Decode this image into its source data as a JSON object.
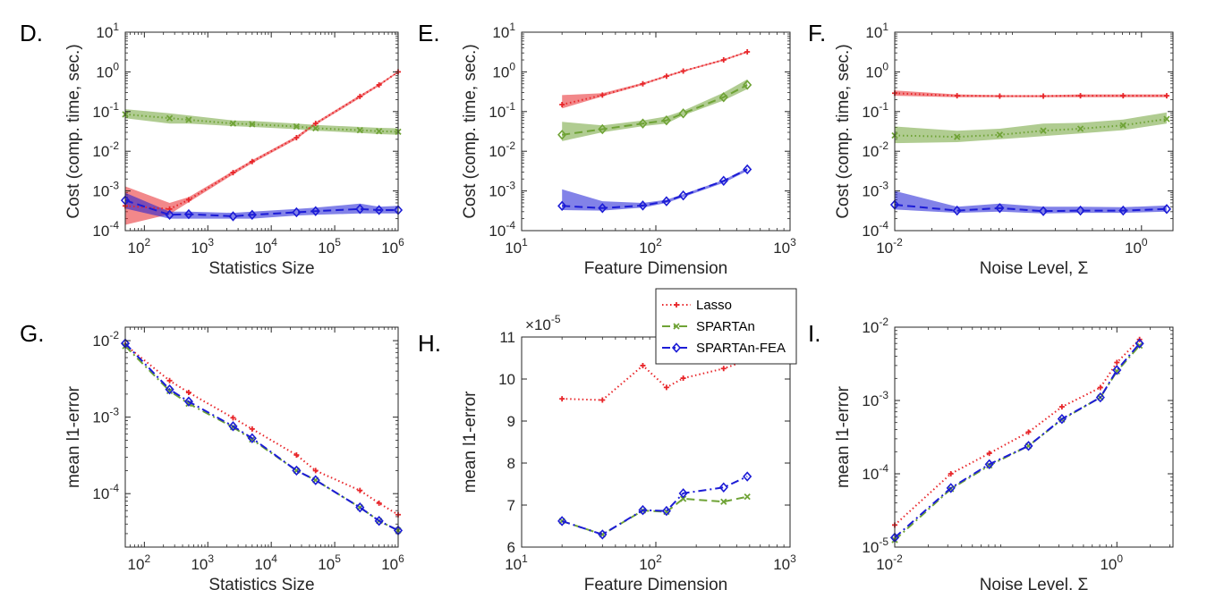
{
  "figure": {
    "legend": {
      "entries": [
        {
          "name": "Lasso",
          "color": "#e8262a",
          "dash": "dotted",
          "marker": "plus"
        },
        {
          "name": "SPARTAn",
          "color": "#6fa336",
          "dash": "dashdot",
          "marker": "x"
        },
        {
          "name": "SPARTAn-FEA",
          "color": "#1c1cd6",
          "dash": "dashdot",
          "marker": "diamond"
        }
      ]
    }
  },
  "chart_data": [
    {
      "id": "D",
      "letter": "D.",
      "type": "line",
      "xscale": "log",
      "yscale": "log",
      "xlim": [
        50,
        1000000
      ],
      "ylim": [
        0.0001,
        10
      ],
      "xticks": [
        {
          "e": "2"
        },
        {
          "e": "3"
        },
        {
          "e": "4"
        },
        {
          "e": "5"
        },
        {
          "e": "6"
        }
      ],
      "yticks": [
        {
          "e": "-4"
        },
        {
          "e": "-3"
        },
        {
          "e": "-2"
        },
        {
          "e": "-1"
        },
        {
          "e": "0"
        },
        {
          "e": "1"
        }
      ],
      "xlabel": "Statistics Size",
      "ylabel": "Cost (comp. time, sec.)",
      "series": [
        {
          "name": "Lasso",
          "color": "#e8262a",
          "dash": "dotted",
          "marker": "plus",
          "x": [
            50,
            250,
            500,
            2500,
            5000,
            25000,
            50000,
            250000,
            500000,
            1000000
          ],
          "y": [
            0.00042,
            0.00035,
            0.0006,
            0.0029,
            0.0055,
            0.022,
            0.05,
            0.24,
            0.47,
            1.0
          ],
          "band_lo": [
            0.00014,
            0.00026,
            0.00052,
            0.0026,
            0.005,
            0.02,
            0.046,
            0.22,
            0.44,
            0.95
          ],
          "band_hi": [
            0.0013,
            0.0005,
            0.0007,
            0.0032,
            0.006,
            0.024,
            0.054,
            0.26,
            0.5,
            1.05
          ]
        },
        {
          "name": "SPARTAn",
          "color": "#6fa336",
          "dash": "dotted",
          "marker": "x",
          "x": [
            50,
            250,
            500,
            2500,
            5000,
            25000,
            50000,
            250000,
            500000,
            1000000
          ],
          "y": [
            0.085,
            0.068,
            0.062,
            0.05,
            0.048,
            0.042,
            0.038,
            0.034,
            0.032,
            0.031
          ],
          "band_lo": [
            0.068,
            0.05,
            0.05,
            0.043,
            0.041,
            0.036,
            0.033,
            0.029,
            0.027,
            0.026
          ],
          "band_hi": [
            0.115,
            0.09,
            0.08,
            0.06,
            0.058,
            0.05,
            0.046,
            0.041,
            0.039,
            0.038
          ]
        },
        {
          "name": "SPARTAn-FEA",
          "color": "#1c1cd6",
          "dash": "dashed",
          "marker": "diamond",
          "x": [
            50,
            250,
            500,
            2500,
            5000,
            25000,
            50000,
            250000,
            500000,
            1000000
          ],
          "y": [
            0.00058,
            0.00025,
            0.00026,
            0.00023,
            0.00025,
            0.00029,
            0.00031,
            0.00035,
            0.00033,
            0.00033
          ],
          "band_lo": [
            0.00036,
            0.0002,
            0.0002,
            0.0002,
            0.0002,
            0.00024,
            0.00025,
            0.00027,
            0.00027,
            0.00027
          ],
          "band_hi": [
            0.0009,
            0.0003,
            0.0003,
            0.00028,
            0.0003,
            0.00035,
            0.00038,
            0.00048,
            0.0004,
            0.00042
          ]
        }
      ]
    },
    {
      "id": "E",
      "letter": "E.",
      "type": "line",
      "xscale": "log",
      "yscale": "log",
      "xlim": [
        10,
        1000
      ],
      "ylim": [
        0.0001,
        10
      ],
      "xticks": [
        {
          "e": "1"
        },
        {
          "e": "2"
        },
        {
          "e": "3"
        }
      ],
      "yticks": [
        {
          "e": "-4"
        },
        {
          "e": "-3"
        },
        {
          "e": "-2"
        },
        {
          "e": "-1"
        },
        {
          "e": "0"
        },
        {
          "e": "1"
        }
      ],
      "xlabel": "Feature Dimension",
      "ylabel": "Cost (comp. time, sec.)",
      "series": [
        {
          "name": "Lasso",
          "color": "#e8262a",
          "dash": "dotted",
          "marker": "plus",
          "x": [
            20,
            40,
            80,
            120,
            160,
            320,
            480
          ],
          "y": [
            0.15,
            0.26,
            0.5,
            0.78,
            1.05,
            2.0,
            3.2
          ],
          "band_lo": [
            0.12,
            0.24,
            0.47,
            0.74,
            1.0,
            1.9,
            3.05
          ],
          "band_hi": [
            0.26,
            0.29,
            0.53,
            0.82,
            1.1,
            2.1,
            3.35
          ]
        },
        {
          "name": "SPARTAn",
          "color": "#6fa336",
          "dash": "dashed",
          "marker": "diamond",
          "x": [
            20,
            40,
            80,
            120,
            160,
            320,
            480
          ],
          "y": [
            0.026,
            0.036,
            0.05,
            0.06,
            0.09,
            0.23,
            0.47
          ],
          "band_lo": [
            0.018,
            0.03,
            0.043,
            0.05,
            0.08,
            0.19,
            0.37
          ],
          "band_hi": [
            0.055,
            0.045,
            0.06,
            0.075,
            0.105,
            0.3,
            0.65
          ]
        },
        {
          "name": "SPARTAn-FEA",
          "color": "#1c1cd6",
          "dash": "dashed",
          "marker": "diamond",
          "x": [
            20,
            40,
            80,
            120,
            160,
            320,
            480
          ],
          "y": [
            0.00042,
            0.00037,
            0.00043,
            0.00055,
            0.00077,
            0.0018,
            0.0035
          ],
          "band_lo": [
            0.00033,
            0.00032,
            0.00038,
            0.0005,
            0.0007,
            0.0016,
            0.0032
          ],
          "band_hi": [
            0.0011,
            0.00055,
            0.0005,
            0.0006,
            0.00083,
            0.0019,
            0.0038
          ]
        }
      ]
    },
    {
      "id": "F",
      "letter": "F.",
      "type": "line",
      "xscale": "log",
      "yscale": "log",
      "xlim": [
        0.01,
        1.8
      ],
      "ylim": [
        0.0001,
        10
      ],
      "xticks": [
        {
          "e": "-2"
        },
        {
          "e": "0"
        }
      ],
      "yticks": [
        {
          "e": "-4"
        },
        {
          "e": "-3"
        },
        {
          "e": "-2"
        },
        {
          "e": "-1"
        },
        {
          "e": "0"
        },
        {
          "e": "1"
        }
      ],
      "xlabel": "Noise Level, Σ",
      "ylabel": "Cost (comp. time, sec.)",
      "series": [
        {
          "name": "Lasso",
          "color": "#e8262a",
          "dash": "dotted",
          "marker": "plus",
          "x": [
            0.01,
            0.032,
            0.071,
            0.16,
            0.32,
            0.71,
            1.6
          ],
          "y": [
            0.29,
            0.25,
            0.245,
            0.245,
            0.25,
            0.25,
            0.25
          ],
          "band_lo": [
            0.25,
            0.23,
            0.23,
            0.23,
            0.23,
            0.23,
            0.23
          ],
          "band_hi": [
            0.34,
            0.27,
            0.26,
            0.26,
            0.27,
            0.27,
            0.27
          ]
        },
        {
          "name": "SPARTAn",
          "color": "#6fa336",
          "dash": "dotted",
          "marker": "x",
          "x": [
            0.01,
            0.032,
            0.071,
            0.16,
            0.32,
            0.71,
            1.6
          ],
          "y": [
            0.025,
            0.023,
            0.026,
            0.033,
            0.037,
            0.045,
            0.065
          ],
          "band_lo": [
            0.016,
            0.017,
            0.02,
            0.024,
            0.028,
            0.034,
            0.05
          ],
          "band_hi": [
            0.042,
            0.033,
            0.037,
            0.05,
            0.052,
            0.063,
            0.095
          ]
        },
        {
          "name": "SPARTAn-FEA",
          "color": "#1c1cd6",
          "dash": "dashed",
          "marker": "diamond",
          "x": [
            0.01,
            0.032,
            0.071,
            0.16,
            0.32,
            0.71,
            1.6
          ],
          "y": [
            0.00045,
            0.00032,
            0.00037,
            0.00031,
            0.00032,
            0.00032,
            0.00035
          ],
          "band_lo": [
            0.00034,
            0.00028,
            0.0003,
            0.00027,
            0.00028,
            0.00028,
            0.0003
          ],
          "band_hi": [
            0.001,
            0.0004,
            0.00048,
            0.0004,
            0.0004,
            0.00039,
            0.00043
          ]
        }
      ]
    },
    {
      "id": "G",
      "letter": "G.",
      "type": "line",
      "xscale": "log",
      "yscale": "log",
      "xlim": [
        50,
        1000000
      ],
      "ylim": [
        2e-05,
        0.015
      ],
      "xticks": [
        {
          "e": "2"
        },
        {
          "e": "3"
        },
        {
          "e": "4"
        },
        {
          "e": "5"
        },
        {
          "e": "6"
        }
      ],
      "yticks": [
        {
          "e": "-4"
        },
        {
          "e": "-3"
        },
        {
          "e": "-2"
        }
      ],
      "xlabel": "Statistics Size",
      "ylabel": "mean l1-error",
      "series": [
        {
          "name": "Lasso",
          "color": "#e8262a",
          "dash": "dotted",
          "marker": "plus",
          "x": [
            50,
            250,
            500,
            2500,
            5000,
            25000,
            50000,
            250000,
            500000,
            1000000
          ],
          "y": [
            0.0088,
            0.003,
            0.0021,
            0.00098,
            0.0007,
            0.00032,
            0.0002,
            0.00011,
            7.5e-05,
            5.3e-05
          ]
        },
        {
          "name": "SPARTAn",
          "color": "#6fa336",
          "dash": "dashdot",
          "marker": "x",
          "x": [
            50,
            250,
            500,
            2500,
            5000,
            25000,
            50000,
            250000,
            500000,
            1000000
          ],
          "y": [
            0.0085,
            0.0022,
            0.0015,
            0.00074,
            0.00051,
            0.0002,
            0.00015,
            6.6e-05,
            4.4e-05,
            3.3e-05
          ]
        },
        {
          "name": "SPARTAn-FEA",
          "color": "#1c1cd6",
          "dash": "dashdot",
          "marker": "diamond",
          "x": [
            50,
            250,
            500,
            2500,
            5000,
            25000,
            50000,
            250000,
            500000,
            1000000
          ],
          "y": [
            0.0092,
            0.0023,
            0.0016,
            0.00076,
            0.00053,
            0.0002,
            0.00015,
            6.6e-05,
            4.4e-05,
            3.3e-05
          ]
        }
      ]
    },
    {
      "id": "H",
      "letter": "H.",
      "type": "line",
      "xscale": "log",
      "yscale": "linear",
      "xlim": [
        10,
        1000
      ],
      "ylim": [
        6,
        11
      ],
      "xticks": [
        {
          "e": "1"
        },
        {
          "e": "2"
        },
        {
          "e": "3"
        }
      ],
      "yticks": [
        {
          "t": "6"
        },
        {
          "t": "7"
        },
        {
          "t": "8"
        },
        {
          "t": "9"
        },
        {
          "t": "10"
        },
        {
          "t": "11"
        }
      ],
      "y_multiplier": {
        "base": "10",
        "e": "-5"
      },
      "xlabel": "Feature Dimension",
      "ylabel": "mean l1-error",
      "series": [
        {
          "name": "Lasso",
          "color": "#e8262a",
          "dash": "dotted",
          "marker": "plus",
          "x": [
            20,
            40,
            80,
            120,
            160,
            320,
            480
          ],
          "y": [
            9.53,
            9.5,
            10.32,
            9.8,
            10.02,
            10.25,
            10.45
          ]
        },
        {
          "name": "SPARTAn",
          "color": "#6fa336",
          "dash": "dashed",
          "marker": "x",
          "x": [
            20,
            40,
            80,
            120,
            160,
            320,
            480
          ],
          "y": [
            6.62,
            6.3,
            6.87,
            6.84,
            7.15,
            7.08,
            7.2
          ]
        },
        {
          "name": "SPARTAn-FEA",
          "color": "#1c1cd6",
          "dash": "dashdot",
          "marker": "diamond",
          "x": [
            20,
            40,
            80,
            120,
            160,
            320,
            480
          ],
          "y": [
            6.62,
            6.3,
            6.88,
            6.86,
            7.28,
            7.42,
            7.68
          ]
        }
      ]
    },
    {
      "id": "I",
      "letter": "I.",
      "type": "line",
      "xscale": "log",
      "yscale": "log",
      "xlim": [
        0.01,
        3.2
      ],
      "ylim": [
        1e-05,
        0.01
      ],
      "xticks": [
        {
          "e": "-2"
        },
        {
          "e": "0"
        }
      ],
      "yticks": [
        {
          "e": "-5"
        },
        {
          "e": "-4"
        },
        {
          "e": "-3"
        },
        {
          "e": "-2"
        }
      ],
      "xlabel": "Noise Level, Σ",
      "ylabel": "mean l1-error",
      "series": [
        {
          "name": "Lasso",
          "color": "#e8262a",
          "dash": "dotted",
          "marker": "plus",
          "x": [
            0.01,
            0.032,
            0.071,
            0.16,
            0.32,
            0.71,
            1.0,
            1.6
          ],
          "y": [
            2e-05,
            0.0001,
            0.00019,
            0.00037,
            0.00082,
            0.0015,
            0.0033,
            0.0068
          ]
        },
        {
          "name": "SPARTAn",
          "color": "#6fa336",
          "dash": "dashdot",
          "marker": "x",
          "x": [
            0.01,
            0.032,
            0.071,
            0.16,
            0.32,
            0.71,
            1.0,
            1.6
          ],
          "y": [
            1.25e-05,
            6.2e-05,
            0.00013,
            0.00024,
            0.00055,
            0.0011,
            0.0025,
            0.0056
          ]
        },
        {
          "name": "SPARTAn-FEA",
          "color": "#1c1cd6",
          "dash": "dashdot",
          "marker": "diamond",
          "x": [
            0.01,
            0.032,
            0.071,
            0.16,
            0.32,
            0.71,
            1.0,
            1.6
          ],
          "y": [
            1.35e-05,
            6.4e-05,
            0.000135,
            0.00024,
            0.00056,
            0.0011,
            0.0026,
            0.006
          ]
        }
      ]
    }
  ]
}
